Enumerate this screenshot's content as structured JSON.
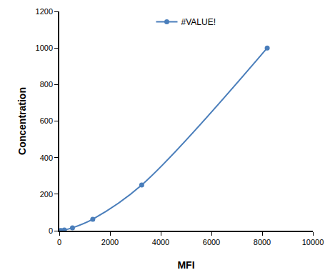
{
  "chart_data": {
    "type": "line",
    "x": [
      30,
      80,
      200,
      520,
      1320,
      3250,
      8200
    ],
    "series": [
      {
        "name": "#VALUE!",
        "color": "#4a7ebb",
        "values": [
          0,
          1,
          4,
          16,
          63,
          250,
          1000
        ]
      }
    ],
    "xlabel": "MFI",
    "ylabel": "Concentration",
    "xlim": [
      0,
      10000
    ],
    "xticks": [
      0,
      2000,
      4000,
      6000,
      8000,
      10000
    ],
    "ylim": [
      0,
      1200
    ],
    "yticks": [
      0,
      200,
      400,
      600,
      800,
      1000,
      1200
    ],
    "grid": false,
    "legend": "top",
    "marker": "circle",
    "line_style": "solid"
  }
}
